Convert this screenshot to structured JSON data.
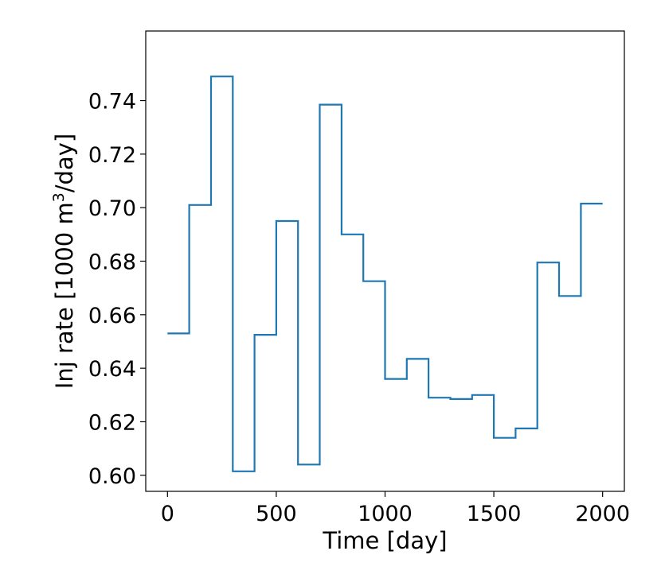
{
  "chart_data": {
    "type": "line",
    "step": "post",
    "xlabel": "Time [day]",
    "ylabel": {
      "prefix": "Inj rate [1000 m",
      "superscript": "3",
      "suffix": "/day]"
    },
    "xlim": [
      -100,
      2100
    ],
    "ylim": [
      0.594,
      0.766
    ],
    "xticks": [
      0,
      500,
      1000,
      1500,
      2000
    ],
    "xtick_labels": [
      "0",
      "500",
      "1000",
      "1500",
      "2000"
    ],
    "yticks": [
      0.6,
      0.62,
      0.64,
      0.66,
      0.68,
      0.7,
      0.72,
      0.74
    ],
    "ytick_labels": [
      "0.60",
      "0.62",
      "0.64",
      "0.66",
      "0.68",
      "0.70",
      "0.72",
      "0.74"
    ],
    "grid": false,
    "color": "#1f77b4",
    "x": [
      0,
      100,
      200,
      300,
      400,
      500,
      600,
      700,
      800,
      900,
      1000,
      1100,
      1200,
      1300,
      1400,
      1500,
      1600,
      1700,
      1800,
      1900,
      2000
    ],
    "y": [
      0.653,
      0.701,
      0.749,
      0.6015,
      0.6525,
      0.695,
      0.604,
      0.7385,
      0.69,
      0.6725,
      0.636,
      0.6435,
      0.629,
      0.6285,
      0.63,
      0.614,
      0.6175,
      0.6795,
      0.667,
      0.7015,
      0.7015
    ]
  }
}
